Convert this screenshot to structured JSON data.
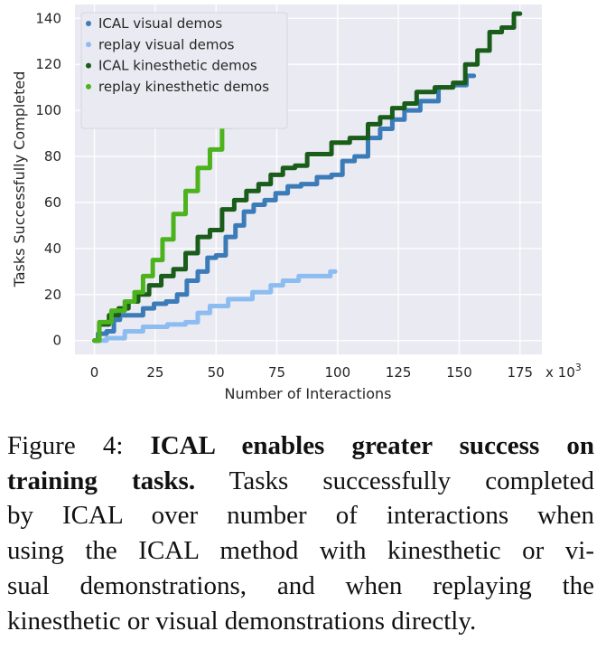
{
  "chart_data": {
    "type": "line",
    "title": "",
    "xlabel": "Number of Interactions",
    "x_multiplier_label": "x 10",
    "x_multiplier_exp": "3",
    "ylabel": "Tasks Successfully Completed",
    "xlim": [
      -8,
      184
    ],
    "ylim": [
      -6,
      146
    ],
    "xticks": [
      0,
      25,
      50,
      75,
      100,
      125,
      150,
      175
    ],
    "xtick_labels": [
      "0",
      "25",
      "50",
      "75",
      "100",
      "125",
      "150",
      "175"
    ],
    "yticks": [
      0,
      20,
      40,
      60,
      80,
      100,
      120,
      140
    ],
    "ytick_labels": [
      "0",
      "20",
      "40",
      "60",
      "80",
      "100",
      "120",
      "140"
    ],
    "grid": true,
    "legend_position": "top-left",
    "series": [
      {
        "name": "ICAL visual demos",
        "color": "#3a7bb8",
        "x": [
          0,
          3,
          7,
          9,
          12,
          18,
          22,
          27,
          32,
          36,
          40,
          45,
          48,
          52,
          56,
          60,
          63,
          68,
          72,
          77,
          82,
          88,
          95,
          100,
          104,
          110,
          115,
          120,
          125,
          130,
          138,
          145,
          150,
          156
        ],
        "y": [
          0,
          3,
          4,
          9,
          11,
          11,
          14,
          16,
          17,
          20,
          26,
          30,
          36,
          37,
          45,
          50,
          56,
          59,
          61,
          64,
          67,
          68,
          71,
          72,
          78,
          80,
          88,
          92,
          96,
          100,
          104,
          110,
          111,
          115
        ]
      },
      {
        "name": "replay visual demos",
        "color": "#8dbdf0",
        "x": [
          0,
          10,
          15,
          25,
          35,
          40,
          45,
          50,
          60,
          70,
          75,
          80,
          88,
          95,
          99
        ],
        "y": [
          0,
          1,
          4,
          6,
          7,
          8,
          12,
          15,
          18,
          21,
          24,
          26,
          28,
          28,
          30
        ]
      },
      {
        "name": "ICAL kinesthetic demos",
        "color": "#1a5c1a",
        "x": [
          0,
          4,
          8,
          12,
          16,
          20,
          25,
          30,
          35,
          40,
          45,
          50,
          55,
          60,
          65,
          70,
          75,
          80,
          85,
          90,
          95,
          100,
          110,
          115,
          120,
          125,
          130,
          135,
          145,
          150,
          155,
          160,
          165,
          170,
          175
        ],
        "y": [
          0,
          7,
          11,
          14,
          17,
          20,
          24,
          28,
          31,
          38,
          45,
          48,
          57,
          61,
          65,
          68,
          72,
          75,
          76,
          81,
          81,
          86,
          88,
          94,
          97,
          101,
          103,
          108,
          110,
          112,
          120,
          126,
          134,
          136,
          142
        ]
      },
      {
        "name": "replay kinesthetic demos",
        "color": "#4cb31c",
        "x": [
          0,
          4,
          10,
          15,
          18,
          22,
          26,
          30,
          35,
          40,
          45,
          50,
          55,
          58,
          60
        ],
        "y": [
          0,
          8,
          13,
          17,
          21,
          28,
          35,
          44,
          55,
          65,
          75,
          83,
          93,
          97,
          100
        ]
      }
    ]
  },
  "caption": {
    "lines": [
      [
        "Figure 4: ",
        "ICAL enables greater success on"
      ],
      [
        "training tasks.",
        " Tasks successfully completed"
      ],
      [
        "by ICAL over number of interactions when"
      ],
      [
        "using the ICAL method with kinesthetic or vi-"
      ],
      [
        "sual demonstrations, and when replaying the"
      ],
      [
        "kinesthetic or visual demonstrations directly."
      ]
    ]
  }
}
